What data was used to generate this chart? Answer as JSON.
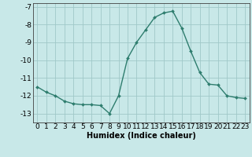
{
  "x": [
    0,
    1,
    2,
    3,
    4,
    5,
    6,
    7,
    8,
    9,
    10,
    11,
    12,
    13,
    14,
    15,
    16,
    17,
    18,
    19,
    20,
    21,
    22,
    23
  ],
  "y": [
    -11.5,
    -11.8,
    -12.0,
    -12.3,
    -12.45,
    -12.5,
    -12.5,
    -12.55,
    -13.0,
    -12.0,
    -9.9,
    -9.0,
    -8.3,
    -7.6,
    -7.35,
    -7.25,
    -8.2,
    -9.5,
    -10.7,
    -11.35,
    -11.4,
    -12.0,
    -12.1,
    -12.15
  ],
  "line_color": "#2e7d6e",
  "marker": "D",
  "marker_size": 2.0,
  "bg_color": "#c8e8e8",
  "grid_color": "#a0c8c8",
  "xlabel": "Humidex (Indice chaleur)",
  "xlim": [
    -0.5,
    23.5
  ],
  "ylim": [
    -13.5,
    -6.8
  ],
  "xticks": [
    0,
    1,
    2,
    3,
    4,
    5,
    6,
    7,
    8,
    9,
    10,
    11,
    12,
    13,
    14,
    15,
    16,
    17,
    18,
    19,
    20,
    21,
    22,
    23
  ],
  "yticks": [
    -13,
    -12,
    -11,
    -10,
    -9,
    -8,
    -7
  ],
  "xlabel_fontsize": 7,
  "tick_fontsize": 6.5
}
